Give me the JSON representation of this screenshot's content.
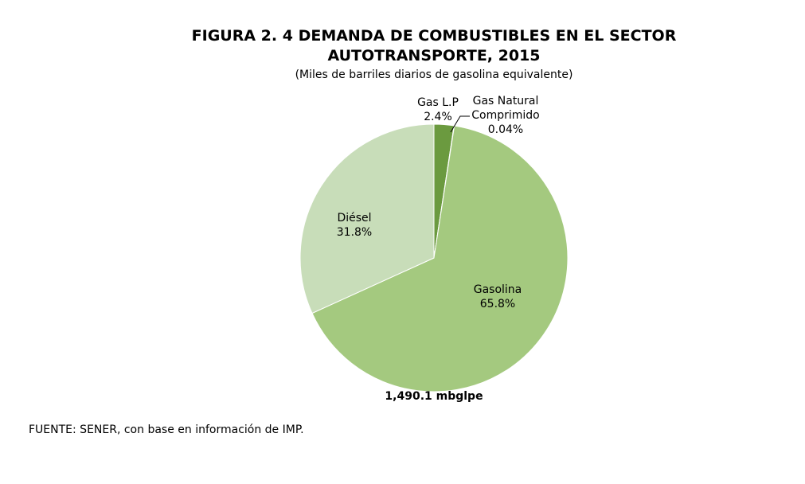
{
  "chart_data": {
    "type": "pie",
    "title_line1": "FIGURA 2. 4 DEMANDA DE COMBUSTIBLES EN EL SECTOR",
    "title_line2": "AUTOTRANSPORTE, 2015",
    "subtitle": "(Miles de barriles diarios de gasolina equivalente)",
    "total_label": "1,490.1 mbglpe",
    "source": "FUENTE: SENER, con base en información de IMP.",
    "start": "top",
    "direction": "clockwise",
    "slices": [
      {
        "name": "Gas L.P",
        "value": 2.4,
        "label": "2.4%",
        "color": "#6b9a3f"
      },
      {
        "name": "Gas Natural Comprimido",
        "name_line1": "Gas Natural",
        "name_line2": "Comprimido",
        "value": 0.04,
        "label": "0.04%",
        "color": "#8fb865"
      },
      {
        "name": "Gasolina",
        "value": 65.8,
        "label": "65.8%",
        "color": "#a4c97f"
      },
      {
        "name": "Diésel",
        "value": 31.8,
        "label": "31.8%",
        "color": "#c8ddb9"
      }
    ]
  }
}
